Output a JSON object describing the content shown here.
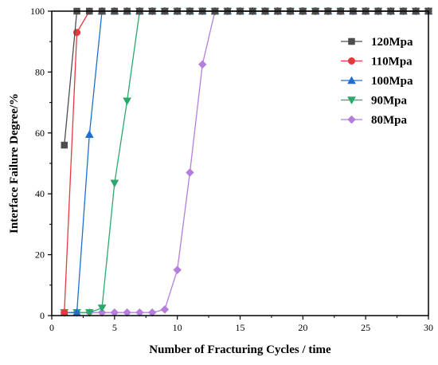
{
  "chart_data": {
    "type": "line",
    "xlabel": "Number of Fracturing Cycles / time",
    "ylabel": "Interface Failure Degree/%",
    "xlim": [
      0,
      30
    ],
    "ylim": [
      0,
      100
    ],
    "xticks": [
      0,
      5,
      10,
      15,
      20,
      25,
      30
    ],
    "yticks": [
      0,
      20,
      40,
      60,
      80,
      100
    ],
    "grid": false,
    "legend_position": "top-right",
    "series": [
      {
        "name": "120Mpa",
        "color": "#4d4d4d",
        "marker": "square",
        "x": [
          1,
          2,
          3,
          4,
          5,
          6,
          7,
          8,
          9,
          10,
          11,
          12,
          13,
          14,
          15,
          16,
          17,
          18,
          19,
          20,
          21,
          22,
          23,
          24,
          25,
          26,
          27,
          28,
          29,
          30
        ],
        "y": [
          56,
          100,
          100,
          100,
          100,
          100,
          100,
          100,
          100,
          100,
          100,
          100,
          100,
          100,
          100,
          100,
          100,
          100,
          100,
          100,
          100,
          100,
          100,
          100,
          100,
          100,
          100,
          100,
          100,
          100
        ]
      },
      {
        "name": "110Mpa",
        "color": "#e8383d",
        "marker": "circle",
        "x": [
          1,
          2,
          3,
          4,
          5,
          6,
          7,
          8,
          9,
          10,
          11,
          12,
          13,
          14,
          15,
          16,
          17,
          18,
          19,
          20,
          21,
          22,
          23,
          24,
          25,
          26,
          27,
          28,
          29,
          30
        ],
        "y": [
          1,
          93,
          100,
          100,
          100,
          100,
          100,
          100,
          100,
          100,
          100,
          100,
          100,
          100,
          100,
          100,
          100,
          100,
          100,
          100,
          100,
          100,
          100,
          100,
          100,
          100,
          100,
          100,
          100,
          100
        ]
      },
      {
        "name": "100Mpa",
        "color": "#1f6fd1",
        "marker": "triangle-up",
        "x": [
          1,
          2,
          3,
          4,
          5,
          6,
          7,
          8,
          9,
          10,
          11,
          12,
          13,
          14,
          15,
          16,
          17,
          18,
          19,
          20,
          21,
          22,
          23,
          24,
          25,
          26,
          27,
          28,
          29,
          30
        ],
        "y": [
          1,
          1,
          59.5,
          100,
          100,
          100,
          100,
          100,
          100,
          100,
          100,
          100,
          100,
          100,
          100,
          100,
          100,
          100,
          100,
          100,
          100,
          100,
          100,
          100,
          100,
          100,
          100,
          100,
          100,
          100
        ]
      },
      {
        "name": "90Mpa",
        "color": "#2ca86a",
        "marker": "triangle-down",
        "x": [
          1,
          2,
          3,
          4,
          5,
          6,
          7,
          8,
          9,
          10,
          11,
          12,
          13,
          14,
          15,
          16,
          17,
          18,
          19,
          20,
          21,
          22,
          23,
          24,
          25,
          26,
          27,
          28,
          29,
          30
        ],
        "y": [
          1,
          1,
          1,
          2.5,
          43.5,
          70.5,
          100,
          100,
          100,
          100,
          100,
          100,
          100,
          100,
          100,
          100,
          100,
          100,
          100,
          100,
          100,
          100,
          100,
          100,
          100,
          100,
          100,
          100,
          100,
          100
        ]
      },
      {
        "name": "80Mpa",
        "color": "#b57edc",
        "marker": "diamond",
        "x": [
          1,
          2,
          3,
          4,
          5,
          6,
          7,
          8,
          9,
          10,
          11,
          12,
          13,
          14,
          15,
          16,
          17,
          18,
          19,
          20,
          21,
          22,
          23,
          24,
          25,
          26,
          27,
          28,
          29,
          30
        ],
        "y": [
          1,
          1,
          1,
          1,
          1,
          1,
          1,
          1,
          2,
          15,
          47,
          82.5,
          100,
          100,
          100,
          100,
          100,
          100,
          100,
          100,
          100,
          100,
          100,
          100,
          100,
          100,
          100,
          100,
          100,
          100
        ]
      }
    ]
  }
}
